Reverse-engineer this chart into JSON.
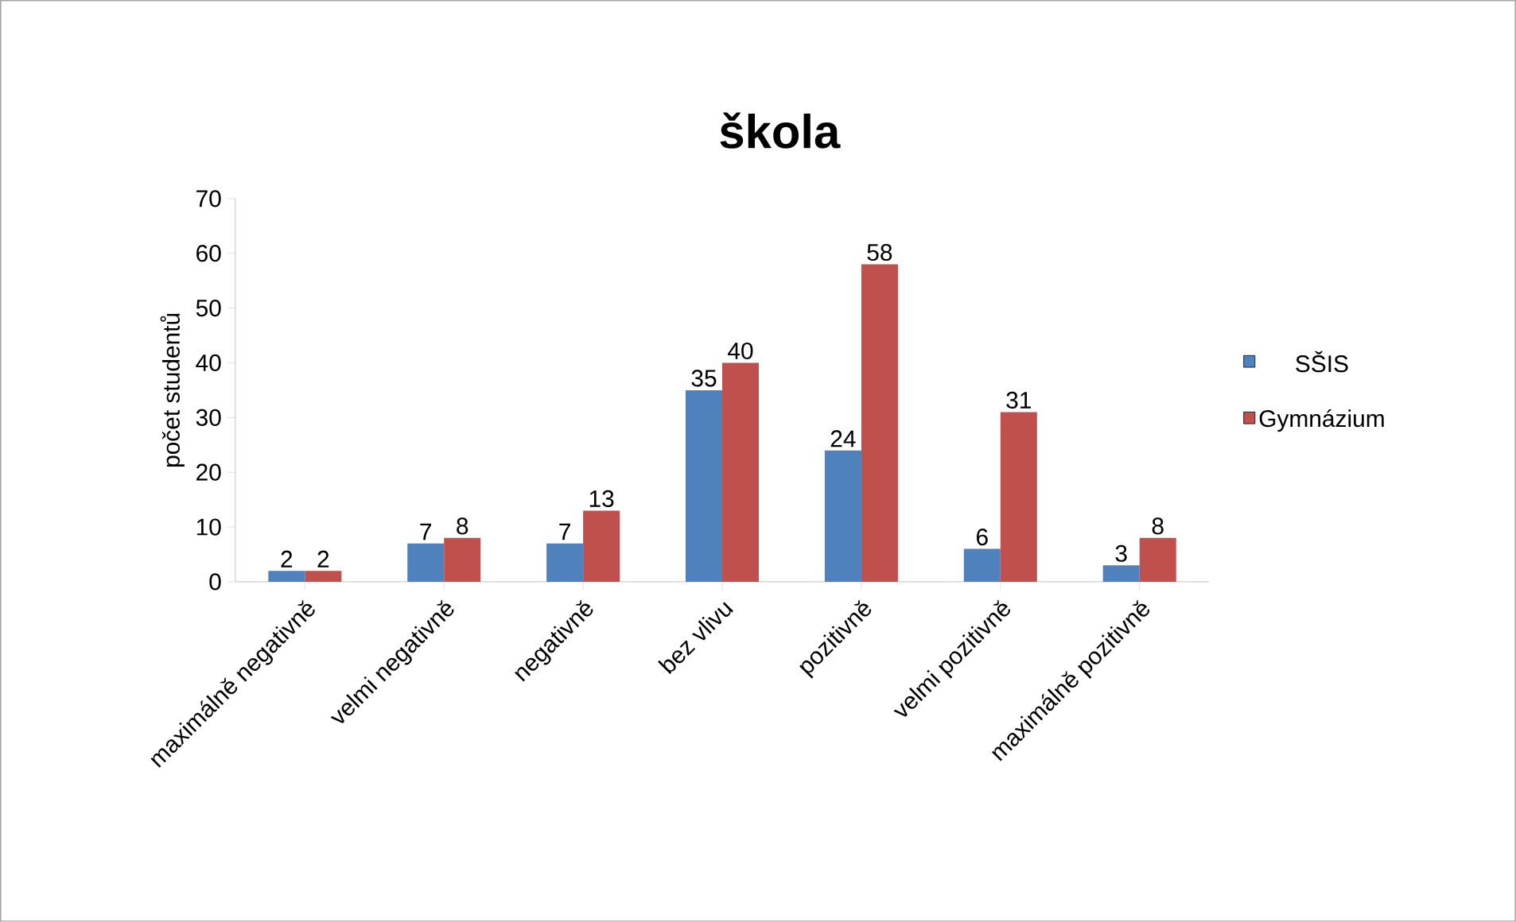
{
  "chart_data": {
    "type": "bar",
    "title": "**škola**",
    "ylabel": "počet studentů",
    "categories": [
      "maximálně negativně",
      "velmi negativně",
      "negativně",
      "bez vlivu",
      "pozitivně",
      "velmi pozitivně",
      "maximálně pozitivně"
    ],
    "series": [
      {
        "name": "SŠIS",
        "color": "#4f81bd",
        "values": [
          2,
          7,
          7,
          35,
          24,
          6,
          3
        ]
      },
      {
        "name": "Gymnázium",
        "color": "#c0504d",
        "values": [
          2,
          8,
          13,
          40,
          58,
          31,
          8
        ]
      }
    ],
    "ylim": [
      0,
      70
    ],
    "yticks": [
      0,
      10,
      20,
      30,
      40,
      50,
      60,
      70
    ],
    "data_labels": true,
    "legend": "right",
    "grid": false
  }
}
